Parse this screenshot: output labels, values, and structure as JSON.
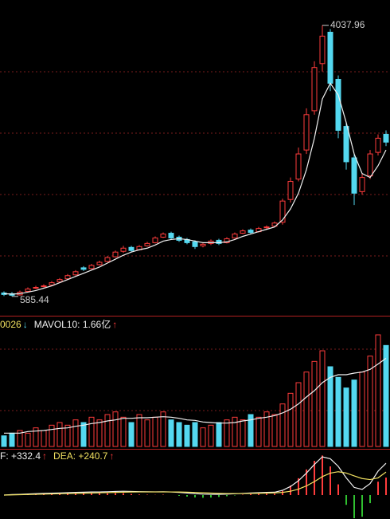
{
  "chart_data": {
    "type": "candlestick",
    "price": {
      "ylim": [
        350,
        4360
      ],
      "open": [
        630,
        620,
        605,
        650,
        690,
        710,
        730,
        770,
        810,
        860,
        950,
        940,
        990,
        1030,
        1090,
        1160,
        1210,
        1180,
        1230,
        1270,
        1340,
        1390,
        1340,
        1310,
        1280,
        1230,
        1260,
        1300,
        1270,
        1330,
        1390,
        1430,
        1410,
        1460,
        1480,
        1530,
        1820,
        2080,
        2450,
        2950,
        3550,
        3950,
        3350,
        2750,
        2350,
        1920,
        2120,
        2420,
        2650
      ],
      "high": [
        650,
        640,
        660,
        700,
        720,
        740,
        780,
        820,
        870,
        920,
        970,
        1000,
        1040,
        1100,
        1170,
        1230,
        1230,
        1240,
        1280,
        1350,
        1400,
        1410,
        1360,
        1330,
        1300,
        1270,
        1310,
        1320,
        1340,
        1400,
        1440,
        1450,
        1470,
        1490,
        1540,
        1830,
        2100,
        2480,
        2980,
        3580,
        4037.96,
        3990,
        3400,
        2800,
        2400,
        2150,
        2450,
        2650,
        2700
      ],
      "low": [
        590,
        585.44,
        595,
        640,
        680,
        700,
        720,
        760,
        800,
        850,
        910,
        930,
        980,
        1020,
        1080,
        1140,
        1150,
        1170,
        1220,
        1260,
        1330,
        1310,
        1280,
        1250,
        1190,
        1210,
        1240,
        1240,
        1260,
        1320,
        1380,
        1380,
        1400,
        1440,
        1470,
        1500,
        1780,
        2050,
        2400,
        2900,
        3450,
        3200,
        2600,
        2200,
        1750,
        1880,
        2080,
        2380,
        2500
      ],
      "close": [
        610,
        600,
        640,
        680,
        700,
        720,
        760,
        800,
        850,
        900,
        930,
        980,
        1020,
        1080,
        1150,
        1200,
        1170,
        1220,
        1260,
        1330,
        1380,
        1330,
        1300,
        1270,
        1220,
        1250,
        1290,
        1260,
        1320,
        1380,
        1420,
        1400,
        1450,
        1470,
        1520,
        1800,
        2050,
        2400,
        2900,
        3500,
        3900,
        3300,
        2700,
        2300,
        1900,
        2100,
        2400,
        2600,
        2550
      ],
      "ma": [
        620,
        615,
        620,
        640,
        660,
        690,
        720,
        760,
        800,
        840,
        880,
        920,
        960,
        1010,
        1060,
        1110,
        1150,
        1180,
        1200,
        1240,
        1290,
        1310,
        1320,
        1310,
        1290,
        1270,
        1270,
        1270,
        1280,
        1310,
        1350,
        1380,
        1410,
        1440,
        1470,
        1560,
        1700,
        1900,
        2200,
        2600,
        3100,
        3300,
        3150,
        2800,
        2400,
        2150,
        2100,
        2250,
        2450
      ]
    },
    "up_color": "#ff3c3c",
    "down_color": "#54d8f0",
    "line_color": "#f0f0f0",
    "signal_color": "#f0e060",
    "volume": {
      "ylim": [
        0,
        2.4
      ],
      "legend": [
        "0026",
        "↓",
        "MAVOL10: 1.66亿",
        "↑"
      ],
      "values": [
        0.2,
        0.25,
        0.3,
        0.25,
        0.35,
        0.3,
        0.4,
        0.45,
        0.4,
        0.5,
        0.45,
        0.55,
        0.5,
        0.6,
        0.65,
        0.55,
        0.45,
        0.6,
        0.5,
        0.55,
        0.65,
        0.5,
        0.45,
        0.4,
        0.45,
        0.35,
        0.4,
        0.45,
        0.5,
        0.55,
        0.5,
        0.6,
        0.55,
        0.65,
        0.6,
        0.8,
        1.0,
        1.2,
        1.4,
        1.6,
        1.8,
        1.5,
        1.3,
        1.1,
        1.25,
        1.4,
        1.7,
        2.1,
        1.9
      ],
      "mavol": [
        0.25,
        0.25,
        0.25,
        0.28,
        0.29,
        0.3,
        0.32,
        0.34,
        0.35,
        0.38,
        0.4,
        0.43,
        0.45,
        0.48,
        0.5,
        0.53,
        0.53,
        0.54,
        0.54,
        0.55,
        0.56,
        0.55,
        0.53,
        0.5,
        0.49,
        0.46,
        0.45,
        0.44,
        0.44,
        0.45,
        0.48,
        0.5,
        0.53,
        0.55,
        0.58,
        0.63,
        0.7,
        0.8,
        0.93,
        1.05,
        1.2,
        1.3,
        1.35,
        1.35,
        1.38,
        1.4,
        1.45,
        1.55,
        1.66
      ]
    },
    "macd": {
      "ylim": [
        -250,
        450
      ],
      "legend": [
        "F: +332.4",
        "↑",
        "DEA: +240.7",
        "↑"
      ],
      "dif": [
        0,
        5,
        8,
        12,
        15,
        18,
        20,
        22,
        25,
        28,
        30,
        32,
        33,
        35,
        38,
        40,
        38,
        36,
        35,
        34,
        35,
        33,
        28,
        22,
        15,
        10,
        8,
        8,
        10,
        14,
        18,
        22,
        25,
        28,
        30,
        50,
        90,
        150,
        230,
        320,
        400,
        380,
        300,
        180,
        80,
        60,
        120,
        250,
        332.4
      ],
      "dea": [
        0,
        2,
        4,
        6,
        8,
        10,
        12,
        14,
        16,
        18,
        20,
        22,
        24,
        26,
        28,
        30,
        32,
        33,
        33,
        33,
        33,
        33,
        32,
        30,
        27,
        24,
        21,
        18,
        16,
        16,
        16,
        17,
        19,
        21,
        23,
        28,
        40,
        62,
        96,
        141,
        193,
        230,
        244,
        231,
        201,
        173,
        162,
        180,
        240.7
      ],
      "hist": [
        0,
        6,
        8,
        12,
        14,
        16,
        16,
        16,
        18,
        20,
        20,
        20,
        18,
        18,
        20,
        20,
        12,
        6,
        4,
        2,
        4,
        0,
        -8,
        -16,
        -24,
        -28,
        -26,
        -20,
        -12,
        -4,
        4,
        10,
        12,
        14,
        14,
        44,
        100,
        176,
        268,
        358,
        414,
        300,
        112,
        -102,
        -242,
        -226,
        -84,
        140,
        183
      ]
    }
  }
}
